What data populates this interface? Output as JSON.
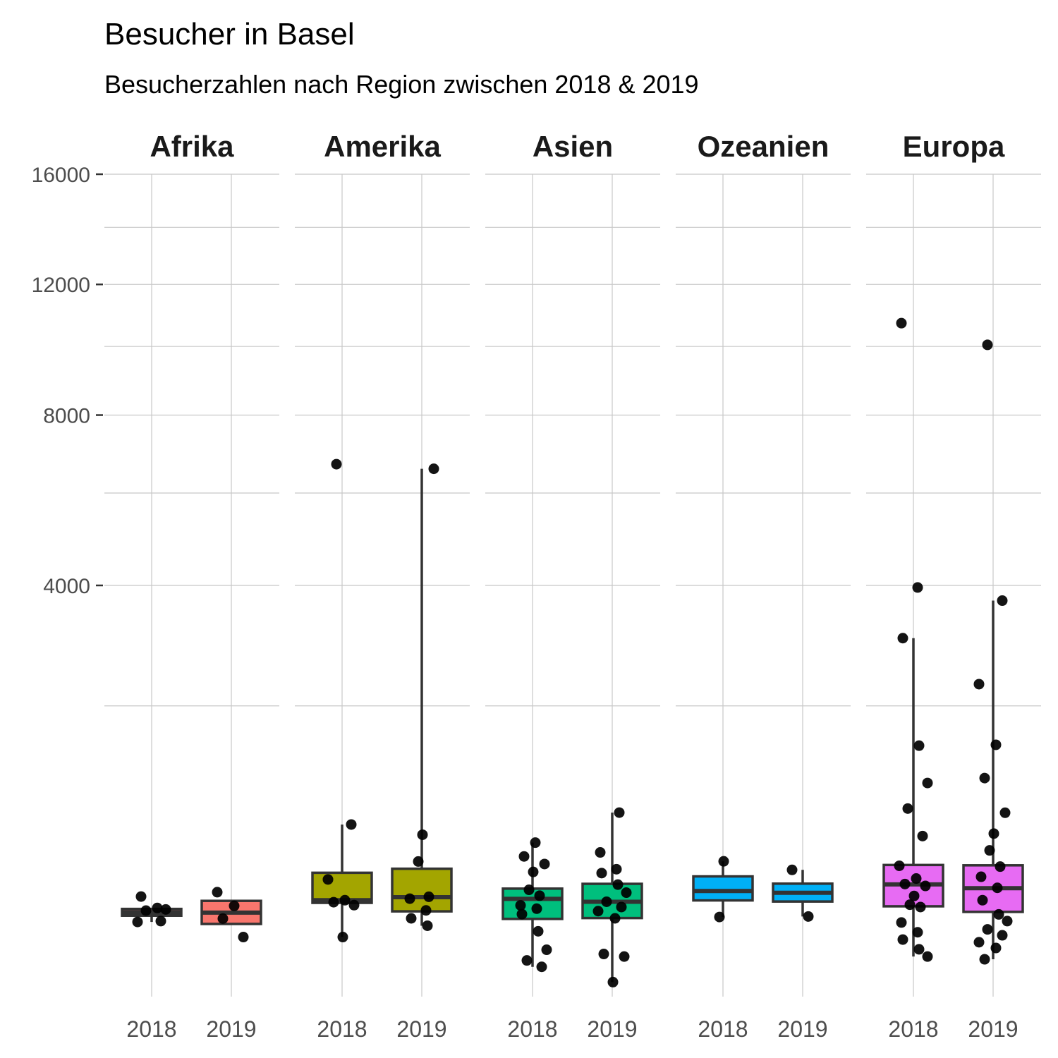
{
  "chart_data": {
    "type": "box",
    "title": "Besucher in Basel",
    "subtitle": "Besucherzahlen nach Region zwischen 2018 & 2019",
    "xlabel": "",
    "ylabel": "",
    "y_scale": "sqrt",
    "ylim": [
      0,
      16000
    ],
    "y_ticks": [
      {
        "label": "16000",
        "value": 16000
      },
      {
        "label": "12000",
        "value": 12000
      },
      {
        "label": "8000",
        "value": 8000
      },
      {
        "label": "4000",
        "value": 4000
      }
    ],
    "y_minor_gridlines": [
      14000,
      10000,
      6000,
      2000
    ],
    "grid": true,
    "legend": "none",
    "categories": [
      "2018",
      "2019"
    ],
    "facets": [
      {
        "name": "Afrika",
        "color": "#F8766D",
        "groups": [
          {
            "category": "2018",
            "box": {
              "lower_whisker": 132,
              "q1": 155,
              "median": 168,
              "q3": 182,
              "upper_whisker": 182
            },
            "points": [
              237,
              186,
              180,
              175,
              135,
              132
            ]
          },
          {
            "category": "2019",
            "box": {
              "lower_whisker": 125,
              "q1": 125,
              "median": 167,
              "q3": 217,
              "upper_whisker": 217
            },
            "points": [
              258,
              195,
              144,
              84
            ]
          }
        ]
      },
      {
        "name": "Amerika",
        "color": "#A3A500",
        "groups": [
          {
            "category": "2018",
            "box": {
              "lower_whisker": 84,
              "q1": 208,
              "median": 220,
              "q3": 363,
              "upper_whisker": 701
            },
            "points": [
              6707,
              701,
              325,
              220,
              211,
              198,
              84
            ]
          },
          {
            "category": "2019",
            "box": {
              "lower_whisker": 119,
              "q1": 172,
              "median": 234,
              "q3": 387,
              "upper_whisker": 6591
            },
            "points": [
              6591,
              620,
              432,
              236,
              227,
              176,
              145,
              119
            ]
          }
        ]
      },
      {
        "name": "Asien",
        "color": "#00BF7D",
        "groups": [
          {
            "category": "2018",
            "box": {
              "lower_whisker": 21,
              "q1": 143,
              "median": 226,
              "q3": 276,
              "upper_whisker": 561
            },
            "points": [
              561,
              465,
              416,
              368,
              270,
              241,
              197,
              183,
              161,
              101,
              52,
              31,
              21
            ]
          },
          {
            "category": "2019",
            "box": {
              "lower_whisker": 5,
              "q1": 146,
              "median": 213,
              "q3": 301,
              "upper_whisker": 801
            },
            "points": [
              801,
              492,
              384,
              361,
              297,
              256,
              213,
              190,
              173,
              145,
              43,
              38,
              5
            ]
          }
        ]
      },
      {
        "name": "Ozeanien",
        "color": "#00B0F6",
        "groups": [
          {
            "category": "2018",
            "box": {
              "lower_whisker": 150,
              "q1": 219,
              "median": 264,
              "q3": 342,
              "upper_whisker": 433
            },
            "points": [
              433,
              150
            ]
          },
          {
            "category": "2019",
            "box": {
              "lower_whisker": 152,
              "q1": 214,
              "median": 255,
              "q3": 302,
              "upper_whisker": 380
            },
            "points": [
              380,
              152
            ]
          }
        ]
      },
      {
        "name": "Europa",
        "color": "#E76BF3",
        "groups": [
          {
            "category": "2018",
            "box": {
              "lower_whisker": 38,
              "q1": 193,
              "median": 298,
              "q3": 410,
              "upper_whisker": 3040
            },
            "points": [
              10730,
              3960,
              3040,
              1490,
              1080,
              837,
              610,
              405,
              330,
              300,
              290,
              240,
              200,
              190,
              130,
              98,
              77,
              53,
              38
            ]
          },
          {
            "category": "2019",
            "box": {
              "lower_whisker": 33,
              "q1": 170,
              "median": 278,
              "q3": 408,
              "upper_whisker": 3710
            },
            "points": [
              10050,
              3710,
              2310,
              1500,
              1130,
              800,
              629,
              506,
              400,
              340,
              280,
              220,
              160,
              135,
              107,
              89,
              70,
              56,
              33
            ]
          }
        ]
      }
    ]
  }
}
